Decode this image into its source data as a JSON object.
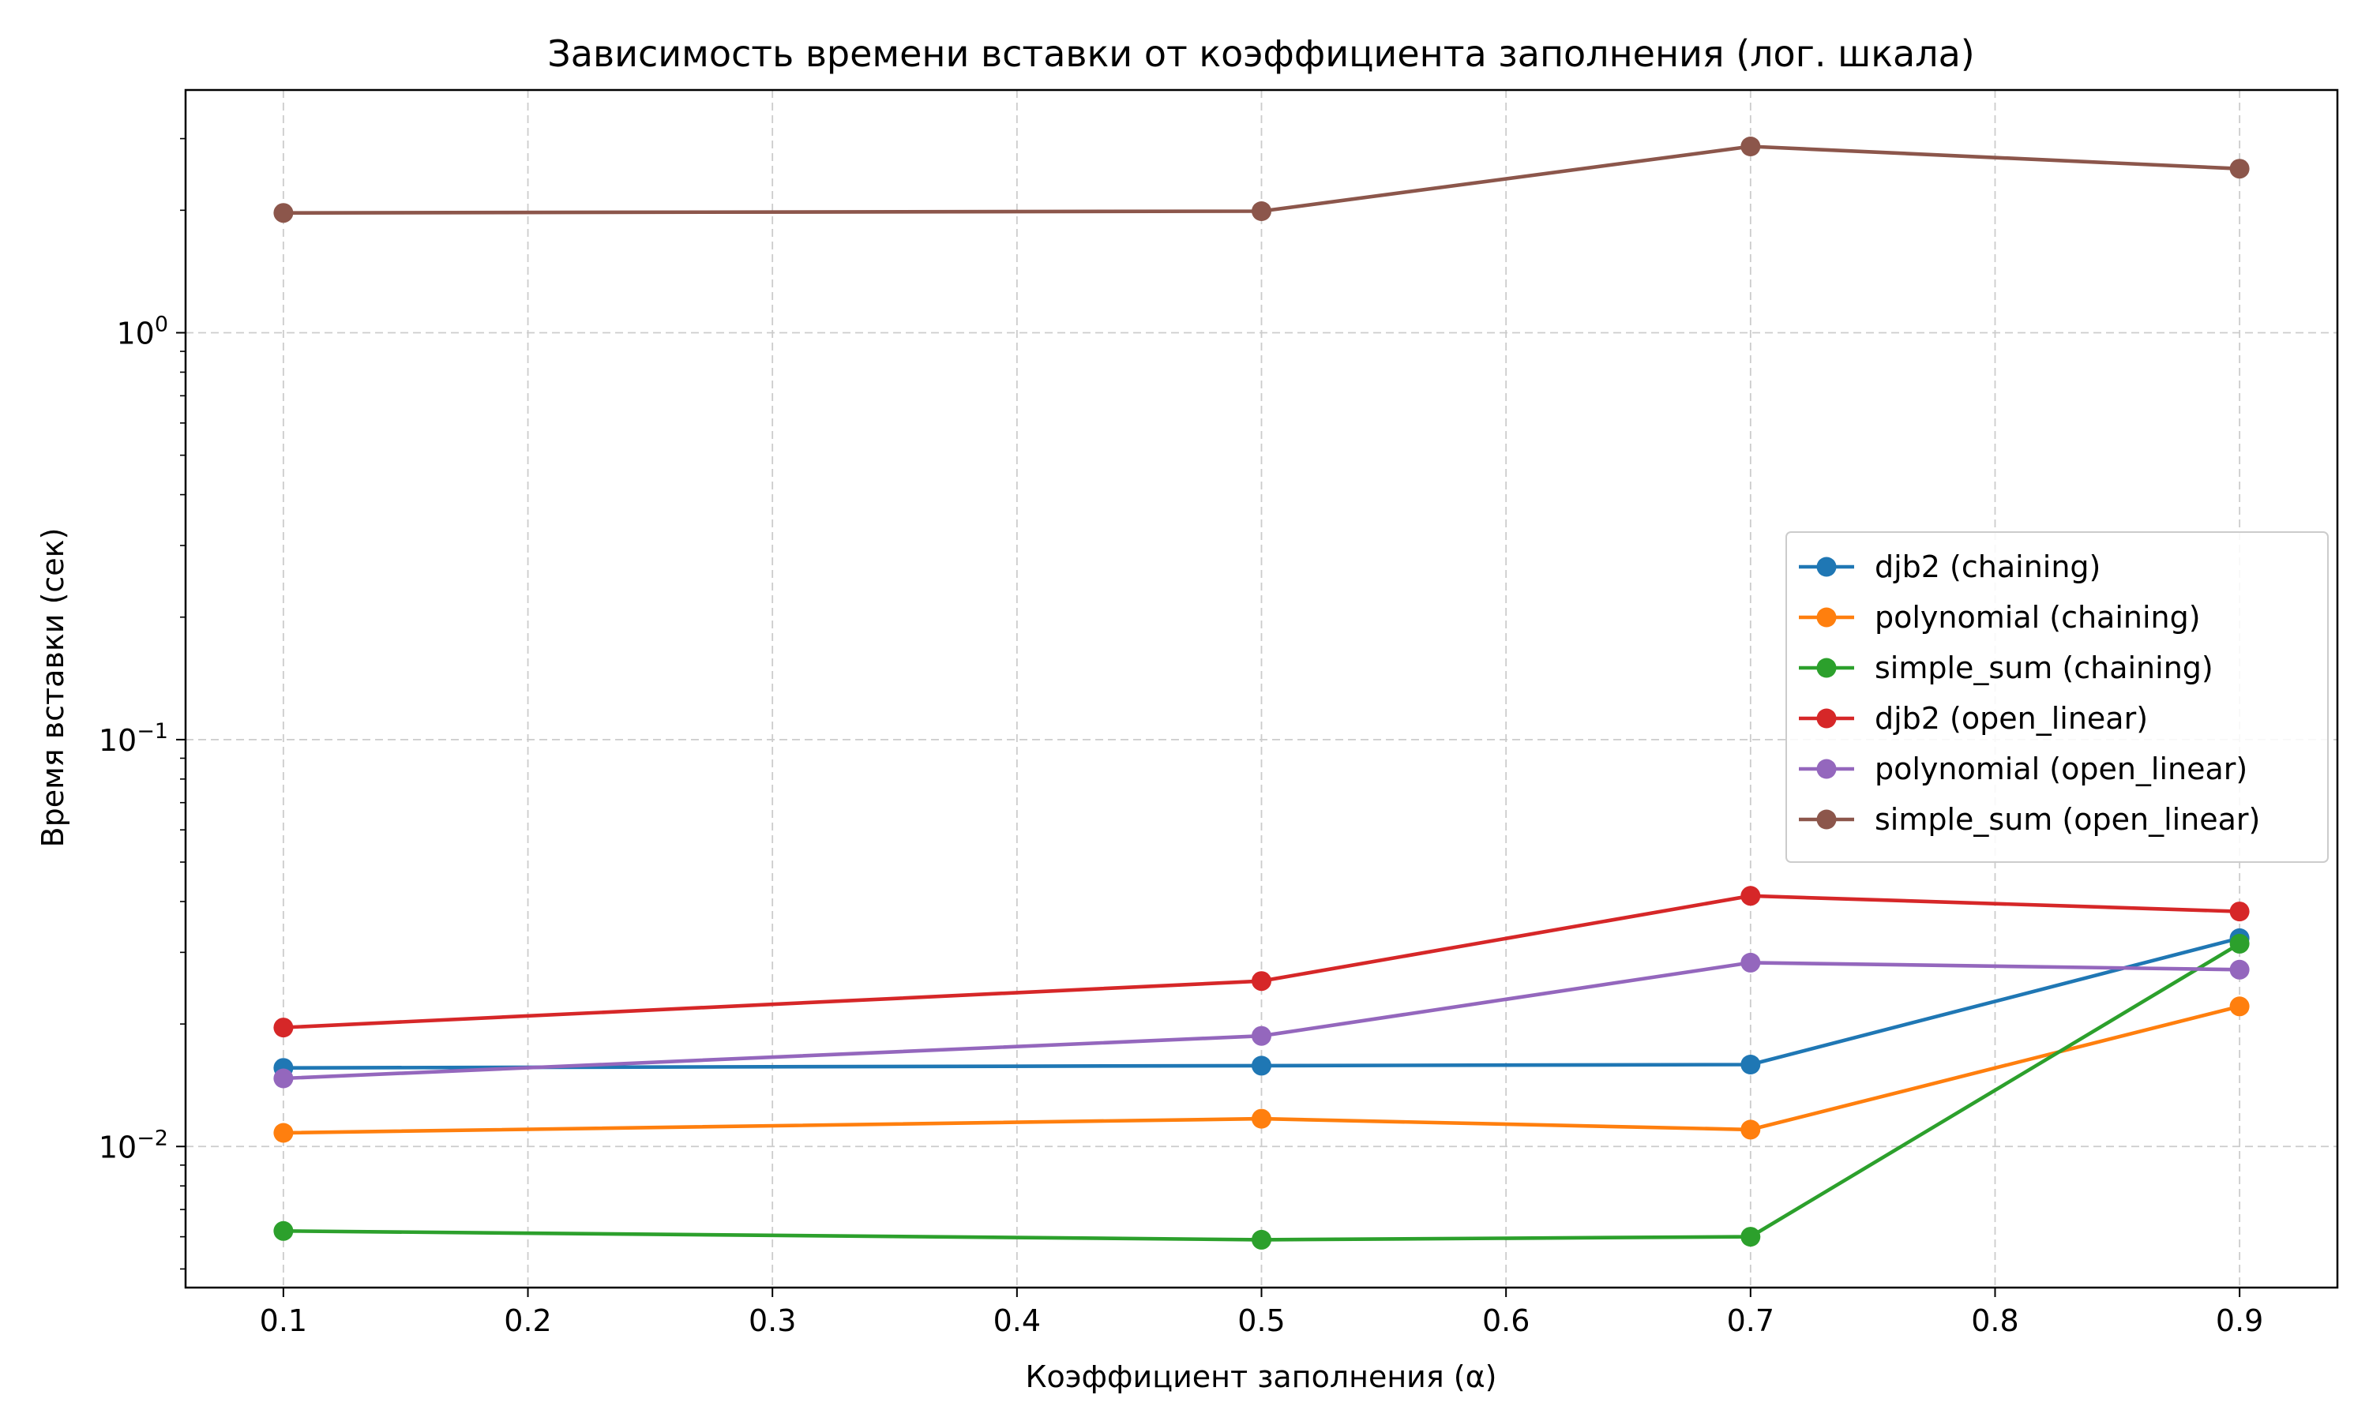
{
  "chart_data": {
    "type": "line",
    "title": "Зависимость времени вставки от коэффициента заполнения (лог. шкала)",
    "xlabel": "Коэффициент заполнения (α)",
    "ylabel": "Время вставки (сек)",
    "x": [
      0.1,
      0.5,
      0.7,
      0.9
    ],
    "xlim": [
      0.06,
      0.94
    ],
    "ylim": [
      0.0045,
      3.95
    ],
    "yscale": "log",
    "x_ticks": [
      "0.1",
      "0.2",
      "0.3",
      "0.4",
      "0.5",
      "0.6",
      "0.7",
      "0.8",
      "0.9"
    ],
    "y_major_ticks": [
      0.01,
      0.1,
      1
    ],
    "grid": true,
    "legend_position": "center-right",
    "series": [
      {
        "name": "djb2 (chaining)",
        "color": "#1f77b4",
        "values": [
          0.0156,
          0.0158,
          0.0159,
          0.0325
        ]
      },
      {
        "name": "polynomial (chaining)",
        "color": "#ff7f0e",
        "values": [
          0.0108,
          0.0117,
          0.011,
          0.0221
        ]
      },
      {
        "name": "simple_sum (chaining)",
        "color": "#2ca02c",
        "values": [
          0.0062,
          0.0059,
          0.006,
          0.0315
        ]
      },
      {
        "name": "djb2 (open_linear)",
        "color": "#d62728",
        "values": [
          0.0196,
          0.0255,
          0.0413,
          0.0378
        ]
      },
      {
        "name": "polynomial (open_linear)",
        "color": "#9467bd",
        "values": [
          0.0147,
          0.0187,
          0.0283,
          0.0272
        ]
      },
      {
        "name": "simple_sum (open_linear)",
        "color": "#8c564b",
        "values": [
          1.97,
          1.99,
          2.87,
          2.53
        ]
      }
    ]
  }
}
